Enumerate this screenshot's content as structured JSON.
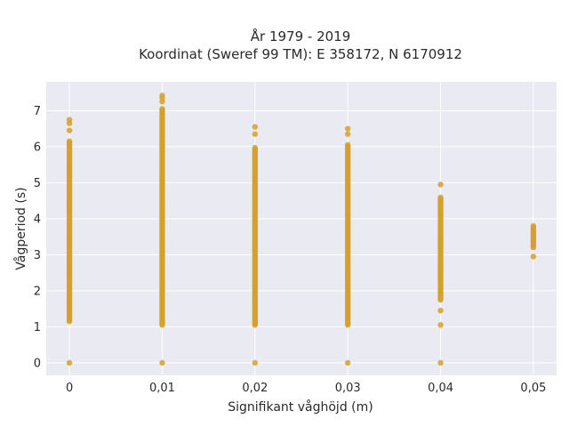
{
  "chart_data": {
    "type": "scatter",
    "title_lines": [
      "År 1979 - 2019",
      "Koordinat (Sweref 99 TM): E 358172, N 6170912"
    ],
    "xlabel": "Signifikant våghöjd (m)",
    "ylabel": "Vågperiod (s)",
    "xlim": [
      -0.0025,
      0.0525
    ],
    "ylim": [
      -0.35,
      7.8
    ],
    "x_ticks": [
      0,
      0.01,
      0.02,
      0.03,
      0.04,
      0.05
    ],
    "x_tick_labels": [
      "0",
      "0,01",
      "0,02",
      "0,03",
      "0,04",
      "0,05"
    ],
    "y_ticks": [
      0,
      1,
      2,
      3,
      4,
      5,
      6,
      7
    ],
    "y_tick_labels": [
      "0",
      "1",
      "2",
      "3",
      "4",
      "5",
      "6",
      "7"
    ],
    "grid": true,
    "marker_color": "#D4A12A",
    "background_color": "#EAEAF2",
    "series": [
      {
        "columns": [
          {
            "x": 0,
            "y_min": 1.15,
            "y_max": 6.15,
            "outliers": [
              6.45,
              6.65,
              6.75,
              0
            ]
          },
          {
            "x": 0.01,
            "y_min": 1.05,
            "y_max": 7.05,
            "outliers": [
              7.25,
              7.35,
              7.42,
              0
            ]
          },
          {
            "x": 0.02,
            "y_min": 1.05,
            "y_max": 6.0,
            "outliers": [
              6.35,
              6.55,
              0
            ]
          },
          {
            "x": 0.03,
            "y_min": 1.05,
            "y_max": 6.05,
            "outliers": [
              6.35,
              6.5,
              0
            ]
          },
          {
            "x": 0.04,
            "y_min": 1.75,
            "y_max": 4.6,
            "outliers": [
              4.95,
              1.45,
              1.05,
              0
            ]
          },
          {
            "x": 0.05,
            "y_min": 3.2,
            "y_max": 3.8,
            "outliers": [
              2.95
            ]
          }
        ]
      }
    ]
  }
}
